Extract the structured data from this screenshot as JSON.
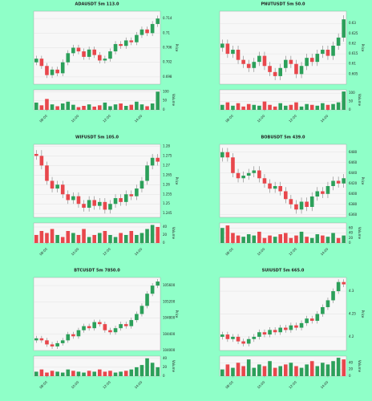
{
  "chart_data": [
    {
      "type": "candlestick",
      "title": "ADAUSDT 5m 113.0",
      "ylabel": "Price",
      "vlabel": "Volume",
      "up_color": "#2ca05a",
      "down_color": "#e8474c",
      "categories": [
        null,
        null,
        "08:00",
        null,
        null,
        null,
        null,
        null,
        "10:00",
        null,
        null,
        null,
        null,
        null,
        "12:00",
        null,
        null,
        null,
        null,
        null,
        "14:00",
        null,
        null,
        null
      ],
      "open": [
        0.702,
        0.703,
        0.701,
        0.6985,
        0.7,
        0.699,
        0.702,
        0.7045,
        0.706,
        0.705,
        0.7035,
        0.7055,
        0.704,
        0.7025,
        0.703,
        0.705,
        0.707,
        0.7065,
        0.708,
        0.7075,
        0.7095,
        0.711,
        0.71,
        0.7125
      ],
      "high": [
        0.7038,
        0.7038,
        0.7018,
        0.7008,
        0.7008,
        0.7028,
        0.7053,
        0.7068,
        0.7068,
        0.7058,
        0.7063,
        0.7063,
        0.7048,
        0.7038,
        0.7058,
        0.7078,
        0.7078,
        0.7088,
        0.7088,
        0.7103,
        0.7118,
        0.7118,
        0.7133,
        0.7148
      ],
      "low": [
        0.7012,
        0.7002,
        0.6977,
        0.6977,
        0.6982,
        0.6982,
        0.7012,
        0.7037,
        0.7042,
        0.7027,
        0.7027,
        0.7032,
        0.7017,
        0.7017,
        0.7022,
        0.7042,
        0.7057,
        0.7057,
        0.7067,
        0.7067,
        0.7087,
        0.7092,
        0.7092,
        0.7117
      ],
      "close": [
        0.703,
        0.701,
        0.6985,
        0.7,
        0.699,
        0.702,
        0.7045,
        0.706,
        0.705,
        0.7035,
        0.7055,
        0.704,
        0.7025,
        0.703,
        0.705,
        0.707,
        0.7065,
        0.708,
        0.7075,
        0.7095,
        0.711,
        0.71,
        0.7125,
        0.714
      ],
      "volume": [
        40,
        25,
        60,
        30,
        20,
        35,
        45,
        28,
        15,
        22,
        30,
        18,
        25,
        40,
        20,
        30,
        35,
        22,
        28,
        45,
        30,
        20,
        35,
        100
      ],
      "ylim": [
        0.696,
        0.716
      ],
      "yticks": [
        0.698,
        0.702,
        0.706,
        0.71,
        0.714
      ],
      "vlim": [
        0,
        110
      ],
      "vticks": [
        0,
        50,
        100
      ]
    },
    {
      "type": "candlestick",
      "title": "PNUTUSDT 5m 50.0",
      "ylabel": "Price",
      "vlabel": "Volume",
      "up_color": "#2ca05a",
      "down_color": "#e8474c",
      "categories": [
        null,
        null,
        "08:00",
        null,
        null,
        null,
        null,
        null,
        "10:00",
        null,
        null,
        null,
        null,
        null,
        "12:00",
        null,
        null,
        null,
        null,
        null,
        "14:00",
        null,
        null,
        null
      ],
      "open": [
        0.618,
        0.62,
        0.615,
        0.617,
        0.612,
        0.61,
        0.608,
        0.611,
        0.614,
        0.609,
        0.606,
        0.604,
        0.608,
        0.612,
        0.61,
        0.605,
        0.609,
        0.613,
        0.611,
        0.615,
        0.617,
        0.614,
        0.619,
        0.623
      ],
      "high": [
        0.622,
        0.622,
        0.619,
        0.619,
        0.614,
        0.612,
        0.613,
        0.616,
        0.616,
        0.611,
        0.608,
        0.61,
        0.614,
        0.614,
        0.612,
        0.611,
        0.615,
        0.615,
        0.617,
        0.619,
        0.619,
        0.621,
        0.625,
        0.634
      ],
      "low": [
        0.616,
        0.613,
        0.613,
        0.61,
        0.608,
        0.606,
        0.606,
        0.609,
        0.607,
        0.604,
        0.602,
        0.602,
        0.606,
        0.608,
        0.603,
        0.603,
        0.607,
        0.609,
        0.609,
        0.613,
        0.612,
        0.612,
        0.617,
        0.621
      ],
      "close": [
        0.62,
        0.615,
        0.617,
        0.612,
        0.61,
        0.608,
        0.611,
        0.614,
        0.609,
        0.606,
        0.604,
        0.608,
        0.612,
        0.61,
        0.605,
        0.609,
        0.613,
        0.611,
        0.615,
        0.617,
        0.614,
        0.619,
        0.623,
        0.632
      ],
      "volume": [
        30,
        45,
        25,
        40,
        20,
        35,
        30,
        25,
        50,
        30,
        20,
        40,
        25,
        30,
        45,
        20,
        35,
        30,
        25,
        40,
        30,
        35,
        45,
        110
      ],
      "ylim": [
        0.6,
        0.636
      ],
      "yticks": [
        0.605,
        0.61,
        0.615,
        0.62,
        0.625,
        0.63
      ],
      "vlim": [
        0,
        120
      ],
      "vticks": [
        0,
        50,
        100
      ]
    },
    {
      "type": "candlestick",
      "title": "WIFUSDT 5m 105.0",
      "ylabel": "Price",
      "vlabel": "Volume",
      "up_color": "#2ca05a",
      "down_color": "#e8474c",
      "categories": [
        null,
        null,
        "08:00",
        null,
        null,
        null,
        null,
        null,
        "10:00",
        null,
        null,
        null,
        null,
        null,
        "12:00",
        null,
        null,
        null,
        null,
        null,
        "14:00",
        null,
        null,
        null
      ],
      "open": [
        1.276,
        1.275,
        1.27,
        1.262,
        1.258,
        1.26,
        1.255,
        1.252,
        1.254,
        1.25,
        1.248,
        1.252,
        1.249,
        1.251,
        1.247,
        1.25,
        1.253,
        1.251,
        1.255,
        1.254,
        1.258,
        1.262,
        1.27,
        1.274
      ],
      "high": [
        1.278,
        1.278,
        1.272,
        1.264,
        1.262,
        1.262,
        1.257,
        1.256,
        1.256,
        1.252,
        1.254,
        1.254,
        1.253,
        1.253,
        1.252,
        1.255,
        1.255,
        1.257,
        1.257,
        1.26,
        1.264,
        1.272,
        1.276,
        1.276
      ],
      "low": [
        1.273,
        1.268,
        1.26,
        1.256,
        1.256,
        1.253,
        1.25,
        1.25,
        1.248,
        1.246,
        1.246,
        1.247,
        1.247,
        1.245,
        1.245,
        1.248,
        1.249,
        1.249,
        1.252,
        1.252,
        1.256,
        1.26,
        1.268,
        1.27
      ],
      "close": [
        1.275,
        1.27,
        1.262,
        1.258,
        1.26,
        1.255,
        1.252,
        1.254,
        1.25,
        1.248,
        1.252,
        1.249,
        1.251,
        1.247,
        1.25,
        1.253,
        1.251,
        1.255,
        1.254,
        1.258,
        1.262,
        1.27,
        1.274,
        1.272
      ],
      "volume": [
        20,
        30,
        25,
        35,
        20,
        15,
        30,
        25,
        20,
        35,
        15,
        20,
        25,
        30,
        20,
        15,
        25,
        20,
        30,
        20,
        25,
        35,
        45,
        40
      ],
      "ylim": [
        1.243,
        1.281
      ],
      "yticks": [
        1.245,
        1.25,
        1.255,
        1.26,
        1.265,
        1.27,
        1.275,
        1.28
      ],
      "vlim": [
        0,
        50
      ],
      "vticks": [
        0,
        20,
        40
      ]
    },
    {
      "type": "candlestick",
      "title": "BOBUSDT 5m 439.0",
      "ylabel": "Price",
      "vlabel": "Volume",
      "up_color": "#2ca05a",
      "down_color": "#e8474c",
      "categories": [
        null,
        null,
        "08:00",
        null,
        null,
        null,
        null,
        null,
        "10:00",
        null,
        null,
        null,
        null,
        null,
        "12:00",
        null,
        null,
        null,
        null,
        null,
        "14:00",
        null,
        null,
        null
      ],
      "open": [
        6470,
        6480,
        6470,
        6440,
        6430,
        6435,
        6440,
        6445,
        6430,
        6420,
        6410,
        6415,
        6405,
        6390,
        6380,
        6370,
        6385,
        6375,
        6395,
        6405,
        6400,
        6415,
        6425,
        6420
      ],
      "high": [
        6488,
        6488,
        6478,
        6448,
        6443,
        6448,
        6453,
        6453,
        6438,
        6428,
        6423,
        6423,
        6413,
        6398,
        6388,
        6393,
        6393,
        6403,
        6413,
        6413,
        6423,
        6433,
        6433,
        6438
      ],
      "low": [
        6462,
        6462,
        6432,
        6422,
        6422,
        6427,
        6432,
        6422,
        6412,
        6402,
        6402,
        6397,
        6382,
        6372,
        6362,
        6362,
        6367,
        6367,
        6387,
        6392,
        6392,
        6407,
        6412,
        6412
      ],
      "close": [
        6480,
        6470,
        6440,
        6430,
        6435,
        6440,
        6445,
        6430,
        6420,
        6410,
        6415,
        6405,
        6390,
        6380,
        6370,
        6385,
        6375,
        6395,
        6405,
        6400,
        6415,
        6425,
        6420,
        6430
      ],
      "volume": [
        60,
        70,
        40,
        30,
        25,
        35,
        30,
        45,
        20,
        30,
        25,
        35,
        40,
        20,
        30,
        45,
        25,
        20,
        35,
        30,
        25,
        40,
        20,
        30
      ],
      "ylim": [
        6355,
        6495
      ],
      "yticks": [
        6360,
        6380,
        6400,
        6420,
        6440,
        6460,
        6480
      ],
      "vlim": [
        0,
        80
      ],
      "vticks": [
        0,
        20,
        40,
        60
      ]
    },
    {
      "type": "candlestick",
      "title": "BTCUSDT 5m 7850.0",
      "ylabel": "Price",
      "vlabel": "Volume",
      "up_color": "#2ca05a",
      "down_color": "#e8474c",
      "categories": [
        null,
        null,
        "08:00",
        null,
        null,
        null,
        null,
        null,
        "10:00",
        null,
        null,
        null,
        null,
        null,
        "12:00",
        null,
        null,
        null,
        null,
        null,
        "14:00",
        null,
        null,
        null
      ],
      "open": [
        104250,
        104300,
        104250,
        104150,
        104100,
        104180,
        104250,
        104400,
        104350,
        104500,
        104600,
        104550,
        104700,
        104650,
        104500,
        104450,
        104550,
        104650,
        104600,
        104750,
        104900,
        105100,
        105400,
        105600
      ],
      "high": [
        104360,
        104360,
        104310,
        104210,
        104240,
        104310,
        104460,
        104460,
        104560,
        104660,
        104660,
        104760,
        104760,
        104710,
        104560,
        104610,
        104710,
        104710,
        104810,
        104960,
        105160,
        105460,
        105660,
        105760
      ],
      "low": [
        104190,
        104190,
        104090,
        104040,
        104040,
        104120,
        104190,
        104290,
        104290,
        104440,
        104490,
        104490,
        104590,
        104440,
        104390,
        104390,
        104490,
        104540,
        104540,
        104690,
        104840,
        105040,
        105340,
        105540
      ],
      "close": [
        104300,
        104250,
        104150,
        104100,
        104180,
        104250,
        104400,
        104350,
        104500,
        104600,
        104550,
        104700,
        104650,
        104500,
        104450,
        104550,
        104650,
        104600,
        104750,
        104900,
        105100,
        105400,
        105600,
        105700
      ],
      "volume": [
        10,
        15,
        8,
        12,
        10,
        8,
        15,
        12,
        10,
        8,
        12,
        10,
        15,
        10,
        12,
        8,
        10,
        12,
        15,
        20,
        25,
        40,
        30,
        20
      ],
      "ylim": [
        104000,
        105800
      ],
      "yticks": [
        104000,
        104400,
        104800,
        105200,
        105600
      ],
      "vlim": [
        0,
        45
      ],
      "vticks": [
        0,
        20,
        40
      ]
    },
    {
      "type": "candlestick",
      "title": "SUIUSDT 5m 665.0",
      "ylabel": "Price",
      "vlabel": "Volume",
      "up_color": "#2ca05a",
      "down_color": "#e8474c",
      "categories": [
        null,
        null,
        "08:00",
        null,
        null,
        null,
        null,
        null,
        "10:00",
        null,
        null,
        null,
        null,
        null,
        "12:00",
        null,
        null,
        null,
        null,
        null,
        "14:00",
        null,
        null,
        null
      ],
      "open": [
        4.2,
        4.205,
        4.195,
        4.2,
        4.19,
        4.185,
        4.195,
        4.2,
        4.21,
        4.205,
        4.215,
        4.21,
        4.22,
        4.215,
        4.225,
        4.22,
        4.23,
        4.24,
        4.235,
        4.25,
        4.265,
        4.28,
        4.3,
        4.32
      ],
      "high": [
        4.211,
        4.211,
        4.206,
        4.206,
        4.196,
        4.201,
        4.206,
        4.216,
        4.216,
        4.221,
        4.221,
        4.226,
        4.226,
        4.231,
        4.231,
        4.236,
        4.246,
        4.246,
        4.256,
        4.271,
        4.286,
        4.306,
        4.326,
        4.326
      ],
      "low": [
        4.194,
        4.189,
        4.189,
        4.184,
        4.179,
        4.179,
        4.189,
        4.194,
        4.199,
        4.199,
        4.204,
        4.204,
        4.209,
        4.209,
        4.214,
        4.214,
        4.224,
        4.229,
        4.229,
        4.244,
        4.259,
        4.274,
        4.294,
        4.309
      ],
      "close": [
        4.205,
        4.195,
        4.2,
        4.19,
        4.185,
        4.195,
        4.2,
        4.21,
        4.205,
        4.215,
        4.21,
        4.22,
        4.215,
        4.225,
        4.22,
        4.23,
        4.24,
        4.235,
        4.25,
        4.265,
        4.28,
        4.3,
        4.32,
        4.315
      ],
      "volume": [
        20,
        35,
        25,
        40,
        30,
        50,
        25,
        35,
        30,
        45,
        25,
        30,
        35,
        40,
        30,
        25,
        35,
        45,
        30,
        40,
        35,
        45,
        55,
        50
      ],
      "ylim": [
        4.17,
        4.33
      ],
      "yticks": [
        4.2,
        4.25,
        4.3
      ],
      "vlim": [
        0,
        60
      ],
      "vticks": [
        0,
        20,
        40
      ]
    }
  ]
}
